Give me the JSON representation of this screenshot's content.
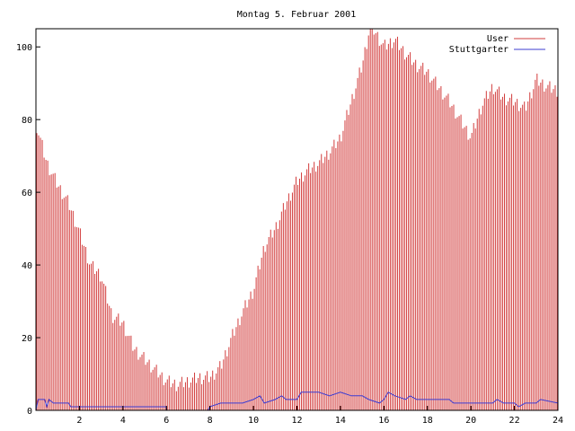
{
  "chart_data": {
    "type": "bar",
    "title": "Montag 5. Februar 2001",
    "xlabel": "",
    "ylabel": "",
    "xlim": [
      0,
      24
    ],
    "ylim": [
      0,
      105
    ],
    "x_ticks": [
      "2",
      "4",
      "6",
      "8",
      "10",
      "12",
      "14",
      "16",
      "18",
      "20",
      "22",
      "24"
    ],
    "y_ticks": [
      "0",
      "20",
      "40",
      "60",
      "80",
      "100"
    ],
    "legend_position": "top-right",
    "grid": false,
    "series": [
      {
        "name": "User",
        "style": "impulses",
        "color": "#d23c3c",
        "points": [
          [
            0.0,
            79
          ],
          [
            0.5,
            68
          ],
          [
            1.0,
            62
          ],
          [
            1.5,
            57
          ],
          [
            2.0,
            49
          ],
          [
            2.5,
            40
          ],
          [
            3.0,
            37
          ],
          [
            3.5,
            26
          ],
          [
            4.0,
            24
          ],
          [
            4.5,
            17
          ],
          [
            5.0,
            14
          ],
          [
            5.5,
            11
          ],
          [
            6.0,
            8
          ],
          [
            6.5,
            7
          ],
          [
            7.0,
            8
          ],
          [
            7.5,
            9
          ],
          [
            8.0,
            9
          ],
          [
            8.5,
            12
          ],
          [
            9.0,
            20
          ],
          [
            9.5,
            27
          ],
          [
            10.0,
            33
          ],
          [
            10.5,
            45
          ],
          [
            11.0,
            50
          ],
          [
            11.5,
            57
          ],
          [
            12.0,
            63
          ],
          [
            12.5,
            66
          ],
          [
            13.0,
            68
          ],
          [
            13.5,
            71
          ],
          [
            14.0,
            75
          ],
          [
            14.5,
            85
          ],
          [
            15.0,
            95
          ],
          [
            15.3,
            104
          ],
          [
            15.5,
            105
          ],
          [
            16.0,
            100
          ],
          [
            16.5,
            102
          ],
          [
            17.0,
            98
          ],
          [
            17.5,
            95
          ],
          [
            18.0,
            93
          ],
          [
            18.5,
            89
          ],
          [
            19.0,
            85
          ],
          [
            19.5,
            80
          ],
          [
            20.0,
            75
          ],
          [
            20.5,
            84
          ],
          [
            21.0,
            89
          ],
          [
            21.5,
            86
          ],
          [
            22.0,
            85
          ],
          [
            22.5,
            83
          ],
          [
            23.0,
            91
          ],
          [
            23.5,
            89
          ],
          [
            24.0,
            88
          ]
        ]
      },
      {
        "name": "Stuttgarter",
        "style": "line",
        "color": "#3c3cd2",
        "points": [
          [
            0.0,
            0
          ],
          [
            0.1,
            3
          ],
          [
            0.4,
            3
          ],
          [
            0.5,
            1
          ],
          [
            0.6,
            3
          ],
          [
            0.8,
            2
          ],
          [
            1.5,
            2
          ],
          [
            1.6,
            1
          ],
          [
            6.0,
            1
          ],
          [
            6.01,
            0
          ],
          [
            7.9,
            0
          ],
          [
            8.0,
            1
          ],
          [
            8.5,
            2
          ],
          [
            9.5,
            2
          ],
          [
            10.0,
            3
          ],
          [
            10.3,
            4
          ],
          [
            10.5,
            2
          ],
          [
            11.0,
            3
          ],
          [
            11.3,
            4
          ],
          [
            11.5,
            3
          ],
          [
            12.0,
            3
          ],
          [
            12.2,
            5
          ],
          [
            13.0,
            5
          ],
          [
            13.5,
            4
          ],
          [
            14.0,
            5
          ],
          [
            14.5,
            4
          ],
          [
            15.0,
            4
          ],
          [
            15.3,
            3
          ],
          [
            15.8,
            2
          ],
          [
            16.0,
            3
          ],
          [
            16.2,
            5
          ],
          [
            16.5,
            4
          ],
          [
            17.0,
            3
          ],
          [
            17.2,
            4
          ],
          [
            17.5,
            3
          ],
          [
            19.0,
            3
          ],
          [
            19.2,
            2
          ],
          [
            21.0,
            2
          ],
          [
            21.2,
            3
          ],
          [
            21.5,
            2
          ],
          [
            22.0,
            2
          ],
          [
            22.2,
            1
          ],
          [
            22.5,
            2
          ],
          [
            23.0,
            2
          ],
          [
            23.2,
            3
          ],
          [
            24.0,
            2
          ]
        ]
      }
    ]
  }
}
